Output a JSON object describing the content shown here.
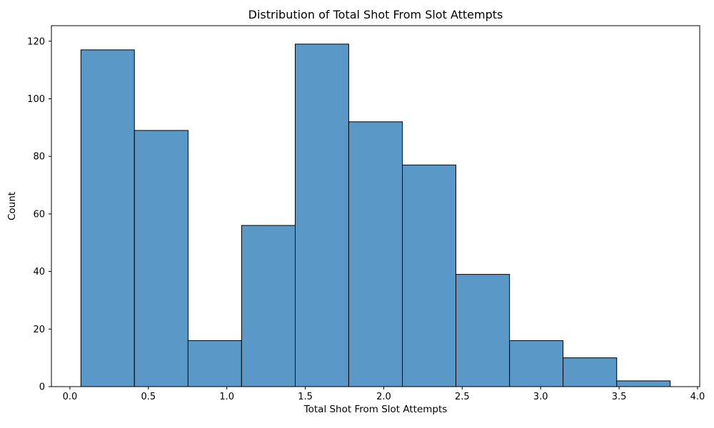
{
  "figure": {
    "background_color": "#ffffff",
    "axes_background_color": "#ffffff",
    "spine_color": "#000000",
    "tick_color": "#000000",
    "text_color": "#000000"
  },
  "chart_data": {
    "type": "bar",
    "subtype": "histogram",
    "title": "Distribution of Total Shot From Slot Attempts",
    "xlabel": "Total Shot From Slot Attempts",
    "ylabel": "Count",
    "bin_edges": [
      0.07,
      0.411,
      0.753,
      1.094,
      1.436,
      1.777,
      2.119,
      2.46,
      2.802,
      3.143,
      3.485,
      3.826
    ],
    "counts": [
      117,
      89,
      16,
      56,
      119,
      92,
      77,
      39,
      16,
      10,
      2
    ],
    "x_ticks": [
      0.0,
      0.5,
      1.0,
      1.5,
      2.0,
      2.5,
      3.0,
      3.5,
      4.0
    ],
    "x_tick_labels": [
      "0.0",
      "0.5",
      "1.0",
      "1.5",
      "2.0",
      "2.5",
      "3.0",
      "3.5",
      "4.0"
    ],
    "y_ticks": [
      0,
      20,
      40,
      60,
      80,
      100,
      120
    ],
    "y_tick_labels": [
      "0",
      "20",
      "40",
      "60",
      "80",
      "100",
      "120"
    ],
    "xlim": [
      -0.118,
      4.014
    ],
    "ylim": [
      0,
      125.4
    ],
    "grid": false,
    "legend_position": "none",
    "bar_fill_color": "#5a99c7",
    "bar_edge_color": "#000000"
  }
}
